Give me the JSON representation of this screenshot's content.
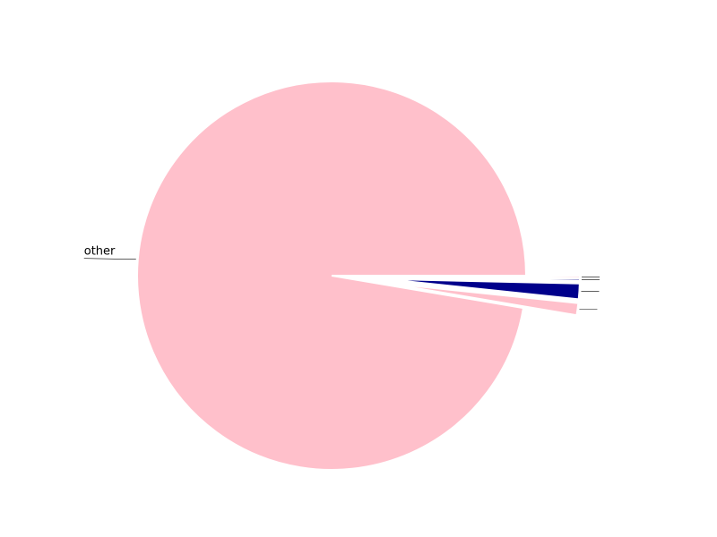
{
  "chart_data": {
    "type": "pie",
    "title": "",
    "slices": [
      {
        "label": "other",
        "value": 97.34,
        "color": "#FFC0CB",
        "exploded": false
      },
      {
        "label": "",
        "value": 1.0,
        "color": "#FFC0CB",
        "exploded": true
      },
      {
        "label": "",
        "value": 1.3,
        "color": "#00008B",
        "exploded": true
      },
      {
        "label": "",
        "value": 0.18,
        "color": "#00008B",
        "exploded": true
      },
      {
        "label": "",
        "value": 0.18,
        "color": "#FFC0CB",
        "exploded": true
      }
    ],
    "start_angle_deg": 0,
    "direction": "counterclockwise",
    "legend": "none"
  }
}
